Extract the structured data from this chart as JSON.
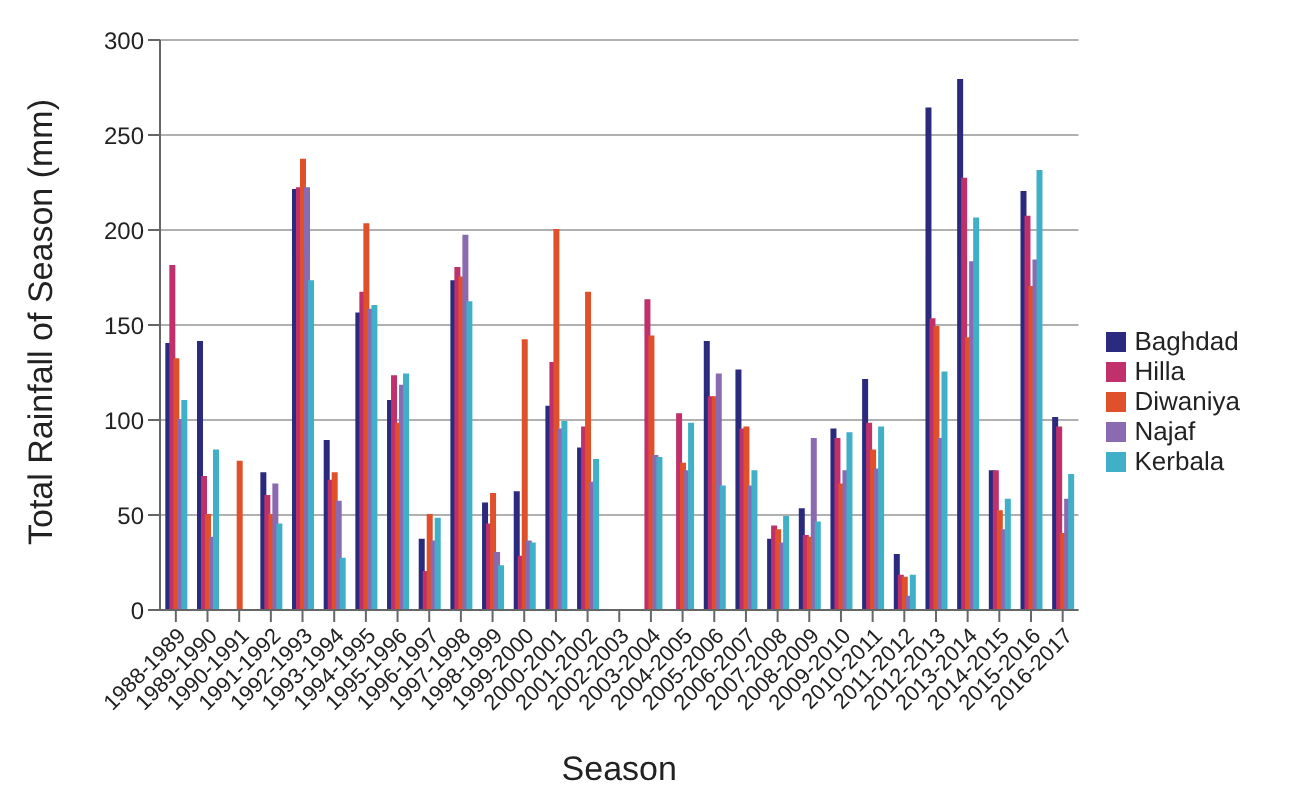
{
  "chart_data": {
    "type": "bar",
    "xlabel": "Season",
    "ylabel": "Total Rainfall of Season (mm)",
    "categories": [
      "1988-1989",
      "1989-1990",
      "1990-1991",
      "1991-1992",
      "1992-1993",
      "1993-1994",
      "1994-1995",
      "1995-1996",
      "1996-1997",
      "1997-1998",
      "1998-1999",
      "1999-2000",
      "2000-2001",
      "2001-2002",
      "2002-2003",
      "2003-2004",
      "2004-2005",
      "2005-2006",
      "2006-2007",
      "2007-2008",
      "2008-2009",
      "2009-2010",
      "2010-2011",
      "2011-2012",
      "2012-2013",
      "2013-2014",
      "2014-2015",
      "2015-2016",
      "2016-2017"
    ],
    "series": [
      {
        "name": "Baghdad",
        "color": "#2a2a7e",
        "values": [
          140,
          141,
          null,
          72,
          221,
          89,
          156,
          110,
          37,
          173,
          56,
          62,
          107,
          85,
          null,
          null,
          null,
          141,
          126,
          37,
          53,
          95,
          121,
          29,
          264,
          279,
          73,
          220,
          101
        ]
      },
      {
        "name": "Hilla",
        "color": "#c0306a",
        "values": [
          181,
          70,
          null,
          60,
          222,
          68,
          167,
          123,
          20,
          180,
          45,
          28,
          130,
          96,
          null,
          163,
          103,
          112,
          95,
          44,
          39,
          90,
          98,
          18,
          153,
          227,
          73,
          207,
          96
        ]
      },
      {
        "name": "Diwaniya",
        "color": "#e0502a",
        "values": [
          132,
          50,
          78,
          50,
          237,
          72,
          203,
          98,
          50,
          175,
          61,
          142,
          200,
          167,
          null,
          144,
          77,
          112,
          96,
          42,
          38,
          66,
          84,
          17,
          149,
          143,
          52,
          170,
          40
        ]
      },
      {
        "name": "Najaf",
        "color": "#8a6ab0",
        "values": [
          100,
          38,
          null,
          66,
          222,
          57,
          158,
          118,
          36,
          197,
          30,
          36,
          95,
          67,
          null,
          81,
          73,
          124,
          65,
          35,
          90,
          73,
          74,
          7,
          90,
          183,
          42,
          184,
          58
        ]
      },
      {
        "name": "Kerbala",
        "color": "#40b0c8",
        "values": [
          110,
          84,
          null,
          45,
          173,
          27,
          160,
          124,
          48,
          162,
          23,
          35,
          99,
          79,
          null,
          80,
          98,
          65,
          73,
          49,
          46,
          93,
          96,
          18,
          125,
          206,
          58,
          231,
          71
        ]
      }
    ],
    "ylim": [
      0,
      300
    ],
    "yticks": [
      0,
      50,
      100,
      150,
      200,
      250,
      300
    ],
    "grid": "y",
    "legend": "right"
  }
}
